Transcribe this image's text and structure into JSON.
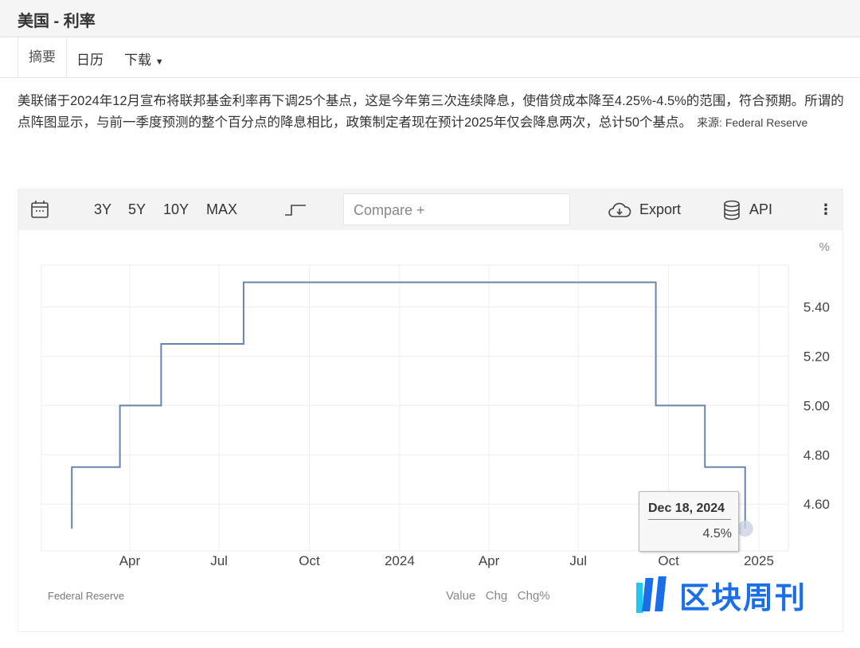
{
  "header": {
    "title": "美国 - 利率"
  },
  "tabs": [
    {
      "label": "摘要"
    },
    {
      "label": "日历"
    },
    {
      "label": "下载"
    }
  ],
  "description": {
    "text": "美联储于2024年12月宣布将联邦基金利率再下调25个基点，这是今年第三次连续降息，使借贷成本降至4.25%-4.5%的范围，符合预期。所谓的点阵图显示，与前一季度预测的整个百分点的降息相比，政策制定者现在预计2025年仅会降息两次，总计50个基点。",
    "source": "来源: Federal Reserve"
  },
  "toolbar": {
    "ranges": [
      "3Y",
      "5Y",
      "10Y",
      "MAX"
    ],
    "compare_placeholder": "Compare +",
    "export": "Export",
    "api": "API",
    "icons": [
      "calendar-icon",
      "step-chart-icon",
      "cloud-download-icon",
      "database-icon",
      "more-vertical-icon"
    ]
  },
  "chart_data": {
    "type": "line",
    "step": true,
    "ylabel": "%",
    "ylim": [
      4.41,
      5.57
    ],
    "yticks": [
      4.6,
      4.8,
      5.0,
      5.2,
      5.4
    ],
    "ytick_labels": [
      "4.60",
      "4.80",
      "5.00",
      "5.20",
      "5.40"
    ],
    "xlim": [
      "2023-01-01",
      "2025-01-31"
    ],
    "xticks": [
      "2023-04-01",
      "2023-07-01",
      "2023-10-01",
      "2024-01-01",
      "2024-04-01",
      "2024-07-01",
      "2024-10-01",
      "2025-01-01"
    ],
    "xtick_labels": [
      "Apr",
      "Jul",
      "Oct",
      "2024",
      "Apr",
      "Jul",
      "Oct",
      "2025"
    ],
    "grid": true,
    "color": "#6a85ad",
    "points": [
      {
        "x": "2023-02-01",
        "y": 4.5
      },
      {
        "x": "2023-02-01",
        "y": 4.75
      },
      {
        "x": "2023-03-22",
        "y": 5.0
      },
      {
        "x": "2023-05-03",
        "y": 5.25
      },
      {
        "x": "2023-07-26",
        "y": 5.5
      },
      {
        "x": "2024-09-18",
        "y": 5.0
      },
      {
        "x": "2024-11-07",
        "y": 4.75
      },
      {
        "x": "2024-12-18",
        "y": 4.5
      }
    ],
    "tooltip": {
      "date": "Dec 18, 2024",
      "value": "4.5%"
    }
  },
  "footer": {
    "source": "Federal Reserve",
    "legend": "Value   Chg   Chg%"
  },
  "watermark": "区块周刊"
}
